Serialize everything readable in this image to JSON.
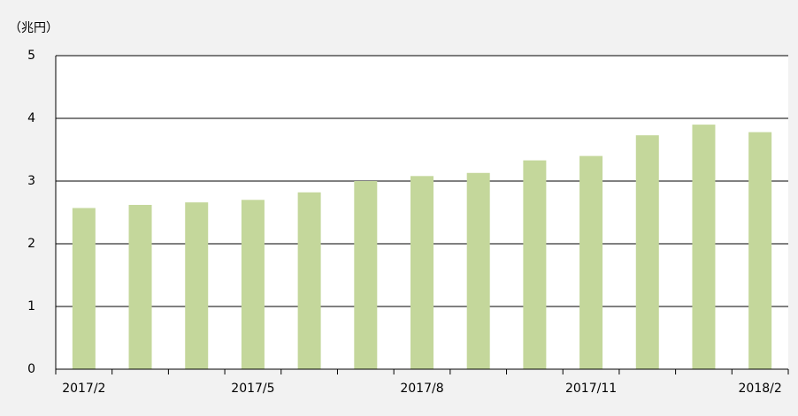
{
  "chart_data": {
    "type": "bar",
    "y_label": "（兆円）",
    "categories": [
      "2017/2",
      null,
      null,
      "2017/5",
      null,
      null,
      "2017/8",
      null,
      null,
      "2017/11",
      null,
      null,
      "2018/2"
    ],
    "values": [
      2.57,
      2.62,
      2.66,
      2.7,
      2.82,
      3.0,
      3.08,
      3.13,
      3.33,
      3.4,
      3.73,
      3.9,
      3.78
    ],
    "color": "#c4d79b",
    "ylim": [
      0,
      5
    ],
    "yticks": [
      0,
      1,
      2,
      3,
      4,
      5
    ],
    "grid": true
  }
}
